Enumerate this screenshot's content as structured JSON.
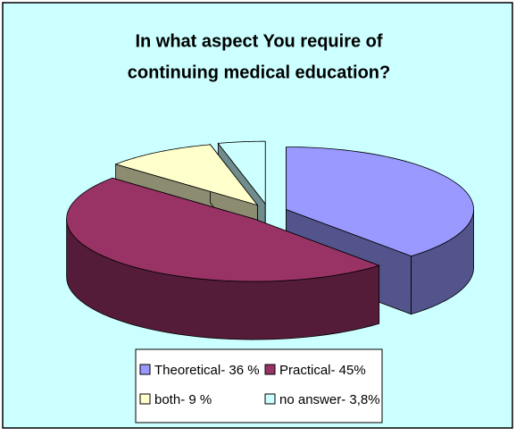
{
  "chart_data": {
    "type": "pie3d",
    "title": [
      "In what aspect You require of",
      "continuing medical education?"
    ],
    "series": [
      {
        "name": "Theoretical- 36 %",
        "color": "#9999ff",
        "value": 36
      },
      {
        "name": "Practical- 45%",
        "color": "#993366",
        "value": 45
      },
      {
        "name": "both- 9 %",
        "color": "#ffffcc",
        "value": 9
      },
      {
        "name": "no answer- 3,8%",
        "color": "#ccffff",
        "value": 3.8
      }
    ],
    "background": "#ccffff",
    "legend": "bottom"
  }
}
